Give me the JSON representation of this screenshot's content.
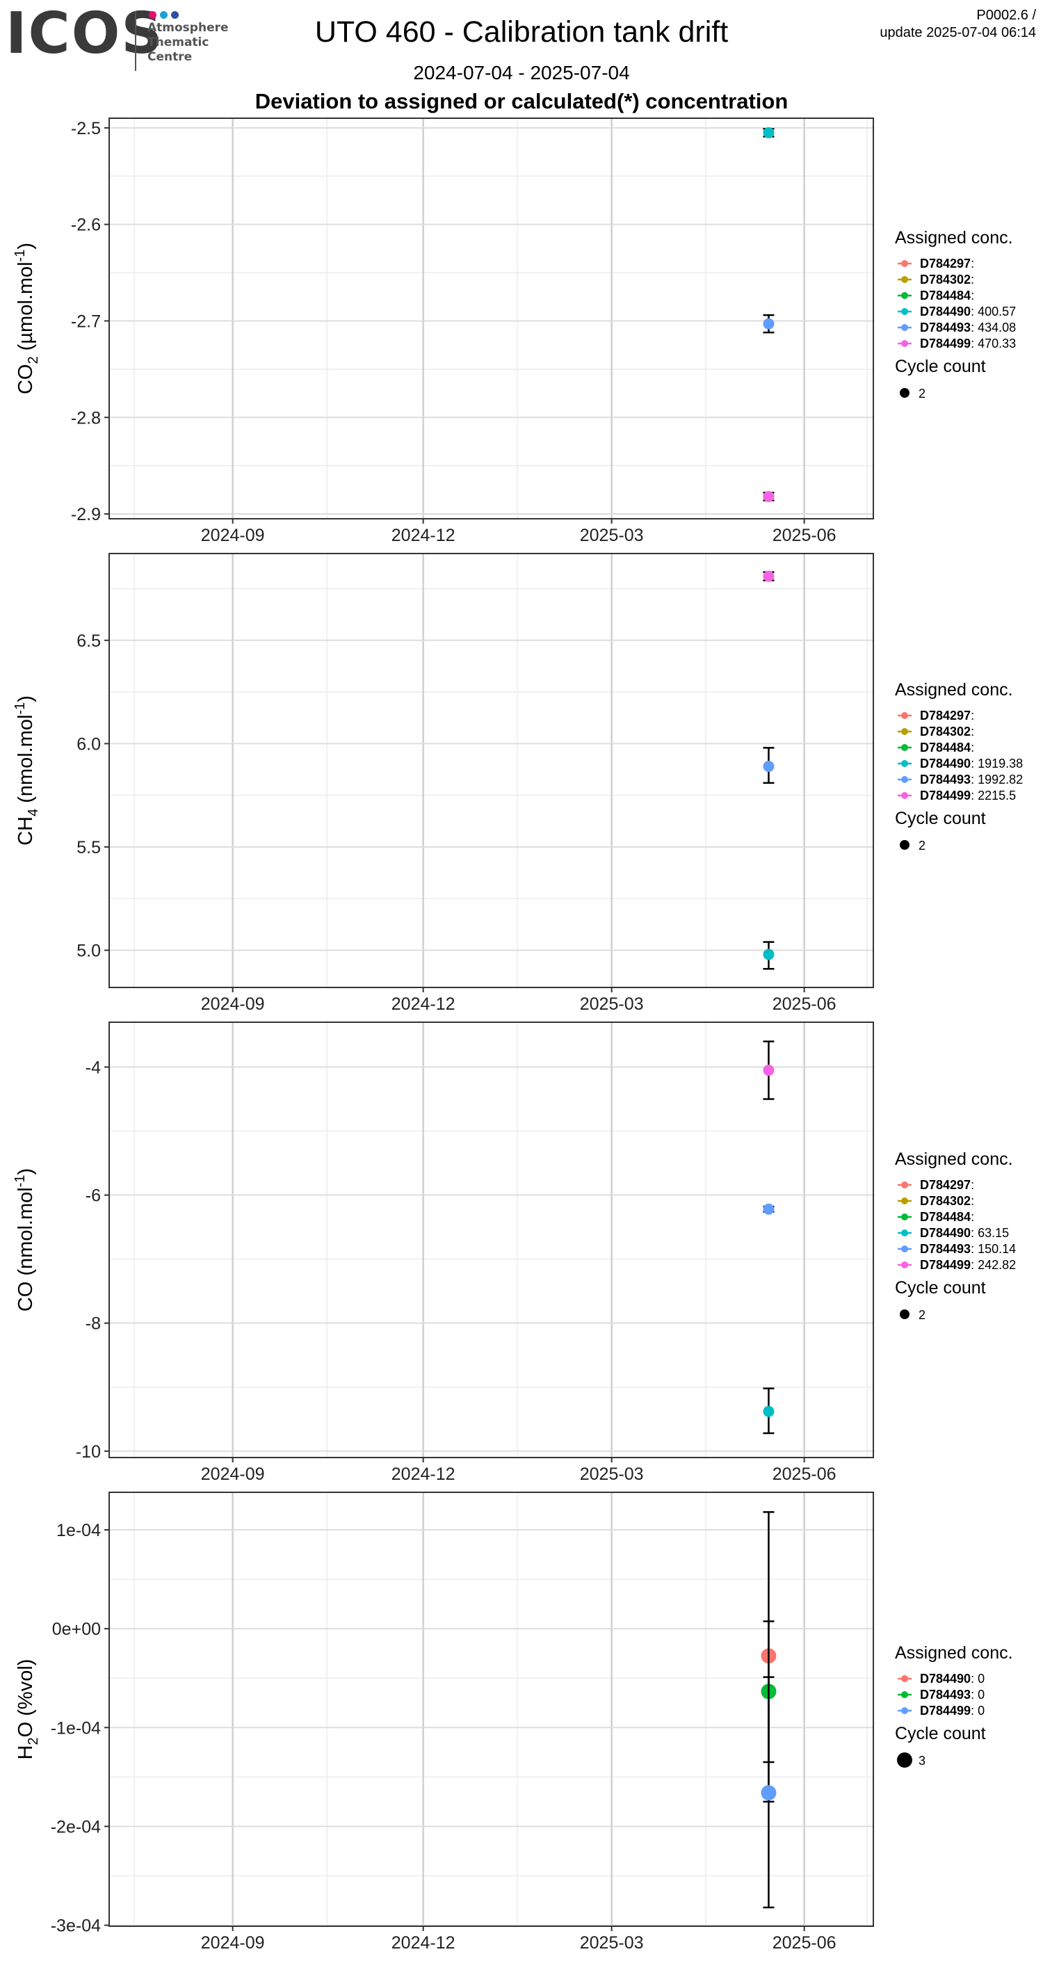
{
  "header": {
    "logo_text": "ICOS",
    "logo_lines": [
      "Atmosphere",
      "Thematic",
      "Centre"
    ],
    "logo_dot_colors": [
      "#e4106d",
      "#1fa0d9",
      "#2f4fa3"
    ],
    "title": "UTO 460 - Calibration tank drift",
    "date_range": "2024-07-04 - 2025-07-04",
    "heading": "Deviation to assigned or calculated(*) concentration",
    "version": "P0002.6 /",
    "update": "update  2025-07-04 06:14"
  },
  "chart_data": [
    {
      "type": "scatter",
      "ylabel": {
        "base": "CO",
        "sub": "2",
        "unit": " (µmol.mol",
        "sup": "-1",
        "close": ")"
      },
      "xlim": [
        "2024-07-04",
        "2025-07-04"
      ],
      "x_ticks": [
        "2024-09",
        "2024-12",
        "2025-03",
        "2025-06"
      ],
      "ylim": [
        -2.905,
        -2.49
      ],
      "y_ticks": [
        -2.5,
        -2.6,
        -2.7,
        -2.8,
        -2.9
      ],
      "y_tick_labels": [
        "-2.5",
        "-2.6",
        "-2.7",
        "-2.8",
        "-2.9"
      ],
      "grid": true,
      "legend_position": "right",
      "legend_title": "Assigned conc.",
      "legend": [
        {
          "name": "D784297",
          "value": "",
          "color": "#F8766D"
        },
        {
          "name": "D784302",
          "value": "",
          "color": "#B79F00"
        },
        {
          "name": "D784484",
          "value": "",
          "color": "#00BA38"
        },
        {
          "name": "D784490",
          "value": "400.57",
          "color": "#00BFC4"
        },
        {
          "name": "D784493",
          "value": "434.08",
          "color": "#619CFF"
        },
        {
          "name": "D784499",
          "value": "470.33",
          "color": "#F564E3"
        }
      ],
      "size_legend_title": "Cycle count",
      "size_legend_value": "2",
      "points": [
        {
          "series": "D784490",
          "x": "2025-05-15",
          "y": -2.505,
          "err_low": -2.509,
          "err_high": -2.501,
          "color": "#00BFC4"
        },
        {
          "series": "D784493",
          "x": "2025-05-15",
          "y": -2.703,
          "err_low": -2.712,
          "err_high": -2.694,
          "color": "#619CFF"
        },
        {
          "series": "D784499",
          "x": "2025-05-15",
          "y": -2.882,
          "err_low": -2.886,
          "err_high": -2.878,
          "color": "#F564E3"
        }
      ]
    },
    {
      "type": "scatter",
      "ylabel": {
        "base": "CH",
        "sub": "4",
        "unit": " (nmol.mol",
        "sup": "-1",
        "close": ")"
      },
      "xlim": [
        "2024-07-04",
        "2025-07-04"
      ],
      "x_ticks": [
        "2024-09",
        "2024-12",
        "2025-03",
        "2025-06"
      ],
      "ylim": [
        4.82,
        6.92
      ],
      "y_ticks": [
        5.0,
        5.5,
        6.0,
        6.5
      ],
      "y_tick_labels": [
        "5.0",
        "5.5",
        "6.0",
        "6.5"
      ],
      "grid": true,
      "legend_position": "right",
      "legend_title": "Assigned conc.",
      "legend": [
        {
          "name": "D784297",
          "value": "",
          "color": "#F8766D"
        },
        {
          "name": "D784302",
          "value": "",
          "color": "#B79F00"
        },
        {
          "name": "D784484",
          "value": "",
          "color": "#00BA38"
        },
        {
          "name": "D784490",
          "value": "1919.38",
          "color": "#00BFC4"
        },
        {
          "name": "D784493",
          "value": "1992.82",
          "color": "#619CFF"
        },
        {
          "name": "D784499",
          "value": "2215.5",
          "color": "#F564E3"
        }
      ],
      "size_legend_title": "Cycle count",
      "size_legend_value": "2",
      "points": [
        {
          "series": "D784490",
          "x": "2025-05-15",
          "y": 4.98,
          "err_low": 4.91,
          "err_high": 5.04,
          "color": "#00BFC4"
        },
        {
          "series": "D784493",
          "x": "2025-05-15",
          "y": 5.89,
          "err_low": 5.81,
          "err_high": 5.98,
          "color": "#619CFF"
        },
        {
          "series": "D784499",
          "x": "2025-05-15",
          "y": 6.81,
          "err_low": 6.79,
          "err_high": 6.83,
          "color": "#F564E3"
        }
      ]
    },
    {
      "type": "scatter",
      "ylabel": {
        "base": "CO",
        "sub": "",
        "unit": " (nmol.mol",
        "sup": "-1",
        "close": ")"
      },
      "xlim": [
        "2024-07-04",
        "2025-07-04"
      ],
      "x_ticks": [
        "2024-09",
        "2024-12",
        "2025-03",
        "2025-06"
      ],
      "ylim": [
        -10.1,
        -3.3
      ],
      "y_ticks": [
        -4,
        -6,
        -8,
        -10
      ],
      "y_tick_labels": [
        "-4",
        "-6",
        "-8",
        "-10"
      ],
      "grid": true,
      "legend_position": "right",
      "legend_title": "Assigned conc.",
      "legend": [
        {
          "name": "D784297",
          "value": "",
          "color": "#F8766D"
        },
        {
          "name": "D784302",
          "value": "",
          "color": "#B79F00"
        },
        {
          "name": "D784484",
          "value": "",
          "color": "#00BA38"
        },
        {
          "name": "D784490",
          "value": "63.15",
          "color": "#00BFC4"
        },
        {
          "name": "D784493",
          "value": "150.14",
          "color": "#619CFF"
        },
        {
          "name": "D784499",
          "value": "242.82",
          "color": "#F564E3"
        }
      ],
      "size_legend_title": "Cycle count",
      "size_legend_value": "2",
      "points": [
        {
          "series": "D784490",
          "x": "2025-05-15",
          "y": -9.38,
          "err_low": -9.72,
          "err_high": -9.02,
          "color": "#00BFC4"
        },
        {
          "series": "D784493",
          "x": "2025-05-15",
          "y": -6.22,
          "err_low": -6.26,
          "err_high": -6.18,
          "color": "#619CFF"
        },
        {
          "series": "D784499",
          "x": "2025-05-15",
          "y": -4.05,
          "err_low": -4.5,
          "err_high": -3.6,
          "color": "#F564E3"
        }
      ]
    },
    {
      "type": "scatter",
      "ylabel": {
        "base": "H",
        "sub": "2",
        "unit": "O (%vol)",
        "sup": "",
        "close": ""
      },
      "xlim": [
        "2024-07-04",
        "2025-07-04"
      ],
      "x_ticks": [
        "2024-09",
        "2024-12",
        "2025-03",
        "2025-06"
      ],
      "ylim": [
        -0.000301,
        0.000138
      ],
      "y_ticks": [
        0.0001,
        0,
        -0.0001,
        -0.0002,
        -0.0003
      ],
      "y_tick_labels": [
        "1e-04",
        "0e+00",
        "-1e-04",
        "-2e-04",
        "-3e-04"
      ],
      "grid": true,
      "legend_position": "right",
      "legend_title": "Assigned conc.",
      "legend": [
        {
          "name": "D784490",
          "value": "0",
          "color": "#F8766D"
        },
        {
          "name": "D784493",
          "value": "0",
          "color": "#00BA38"
        },
        {
          "name": "D784499",
          "value": "0",
          "color": "#619CFF"
        }
      ],
      "size_legend_title": "Cycle count",
      "size_legend_value": "3",
      "points": [
        {
          "series": "D784490",
          "x": "2025-05-15",
          "y": -2.75e-05,
          "err_low": -0.000175,
          "err_high": 0.000118,
          "color": "#F8766D"
        },
        {
          "series": "D784493",
          "x": "2025-05-15",
          "y": -6.35e-05,
          "err_low": -0.000135,
          "err_high": 7.5e-06,
          "color": "#00BA38"
        },
        {
          "series": "D784499",
          "x": "2025-05-15",
          "y": -0.000166,
          "err_low": -0.000282,
          "err_high": -4.9e-05,
          "color": "#619CFF"
        }
      ]
    }
  ]
}
